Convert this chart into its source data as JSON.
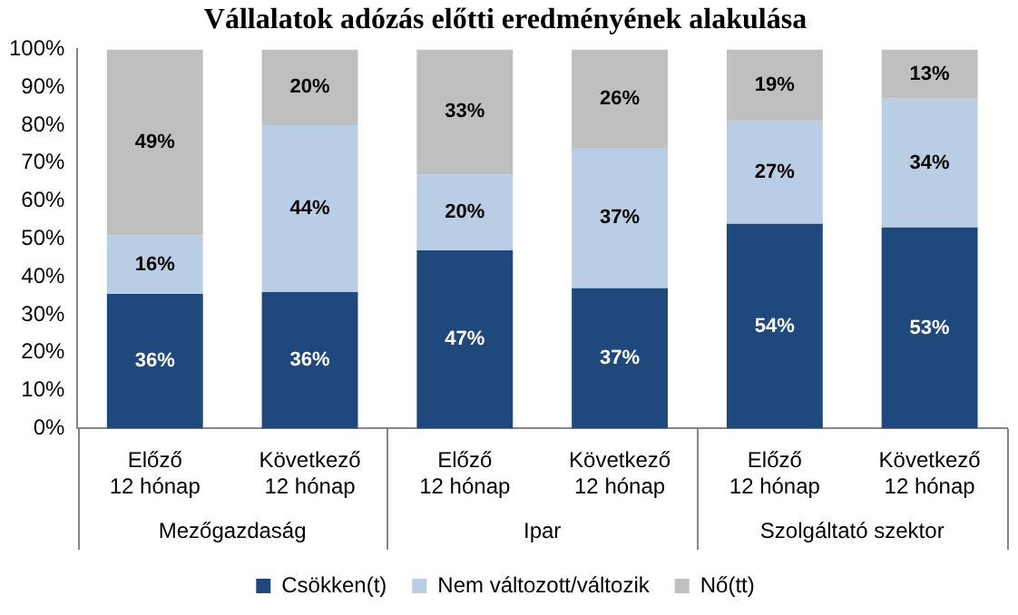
{
  "chart_data": {
    "type": "bar",
    "stacked": true,
    "title": "Vállalatok adózás előtti eredményének alakulása",
    "categories": [
      "Előző\n12 hónap",
      "Következő\n12 hónap",
      "Előző\n12 hónap",
      "Következő\n12 hónap",
      "Előző\n12 hónap",
      "Következő\n12 hónap"
    ],
    "annotations": [
      "Mezőgazdaság",
      "Ipar",
      "Szolgáltató szektor"
    ],
    "series": [
      {
        "name": "Csökken(t)",
        "color": "#1f497d",
        "values": [
          35.5,
          36,
          47,
          37,
          54,
          53
        ],
        "value_labels": [
          "36%",
          "36%",
          "47%",
          "37%",
          "54%",
          "53%"
        ]
      },
      {
        "name": "Nem változott/változik",
        "color": "#b9cde5",
        "values": [
          15.5,
          44,
          20,
          37,
          27,
          34
        ],
        "value_labels": [
          "16%",
          "44%",
          "20%",
          "37%",
          "27%",
          "34%"
        ]
      },
      {
        "name": "Nő(tt)",
        "color": "#bfbfbf",
        "values": [
          49,
          20,
          33,
          26,
          19,
          13
        ],
        "value_labels": [
          "49%",
          "20%",
          "33%",
          "26%",
          "19%",
          "13%"
        ]
      }
    ],
    "ylim": [
      0,
      100
    ],
    "yticks": [
      {
        "value": 0,
        "label": "0%"
      },
      {
        "value": 10,
        "label": "10%"
      },
      {
        "value": 20,
        "label": "20%"
      },
      {
        "value": 30,
        "label": "30%"
      },
      {
        "value": 40,
        "label": "40%"
      },
      {
        "value": 50,
        "label": "50%"
      },
      {
        "value": 60,
        "label": "60%"
      },
      {
        "value": 70,
        "label": "70%"
      },
      {
        "value": 80,
        "label": "80%"
      },
      {
        "value": 90,
        "label": "90%"
      },
      {
        "value": 100,
        "label": "100%"
      }
    ],
    "grid": false,
    "legend": "bottom"
  }
}
